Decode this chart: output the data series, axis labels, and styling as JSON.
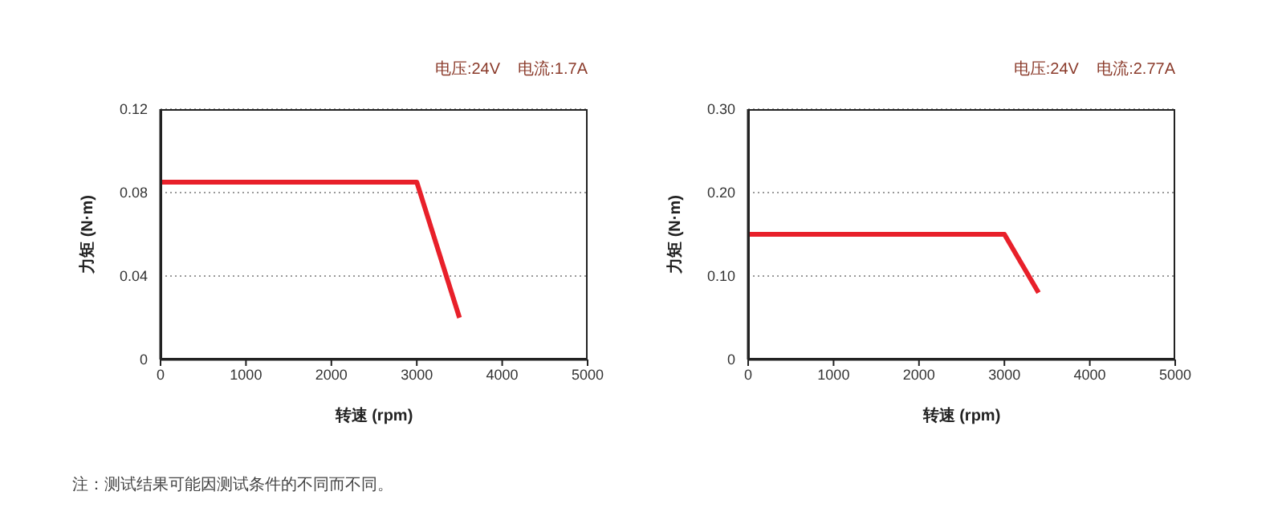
{
  "chart_data": [
    {
      "type": "line",
      "subtitle": "电压:24V    电流:1.7A",
      "xlabel": "转速 (rpm)",
      "ylabel": "力矩 (N·m)",
      "x": [
        0,
        3000,
        3500
      ],
      "series": [
        {
          "color": "#e8202a",
          "values": [
            0.085,
            0.085,
            0.02
          ]
        }
      ],
      "xlim": [
        0,
        5000
      ],
      "xticks": [
        0,
        1000,
        2000,
        3000,
        4000,
        5000
      ],
      "ylim": [
        0,
        0.12
      ],
      "yticks": [
        0,
        0.04,
        0.08,
        0.12
      ],
      "grid": "y",
      "marker": "none",
      "line_style": "solid",
      "annotations": [
        "注：测试结果可能因测试条件的不同而不同。"
      ]
    },
    {
      "type": "line",
      "subtitle": "电压:24V    电流:2.77A",
      "xlabel": "转速 (rpm)",
      "ylabel": "力矩 (N·m)",
      "x": [
        0,
        3000,
        3400
      ],
      "series": [
        {
          "color": "#e8202a",
          "values": [
            0.15,
            0.15,
            0.08
          ]
        }
      ],
      "xlim": [
        0,
        5000
      ],
      "xticks": [
        0,
        1000,
        2000,
        3000,
        4000,
        5000
      ],
      "ylim": [
        0,
        0.3
      ],
      "yticks": [
        0,
        {
          "value": 0.1,
          "label": "0.10"
        },
        {
          "value": 0.2,
          "label": "0.20"
        },
        {
          "value": 0.3,
          "label": "0.30"
        }
      ],
      "grid": "y",
      "marker": "none",
      "line_style": "solid"
    }
  ]
}
